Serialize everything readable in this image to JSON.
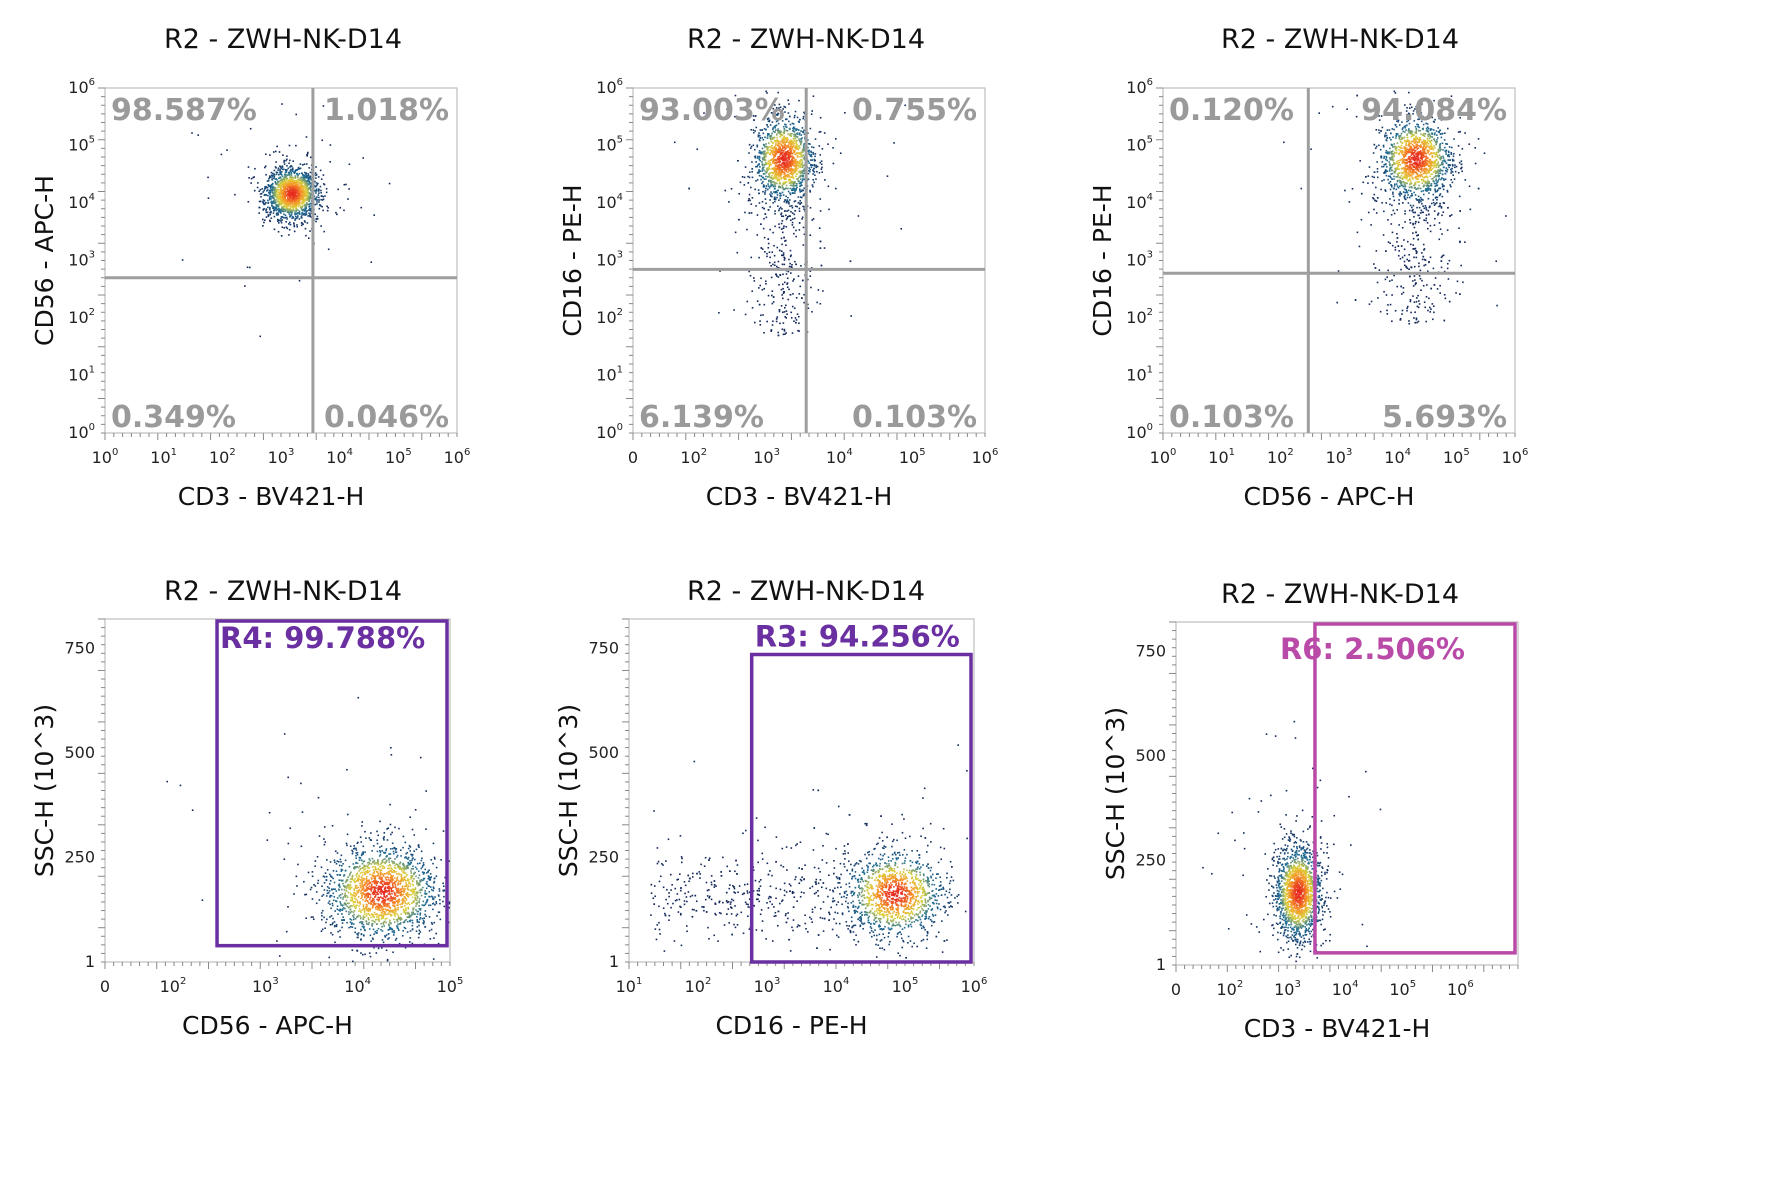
{
  "chart_data": [
    {
      "type": "scatter",
      "title": "R2 - ZWH-NK-D14",
      "xlabel": "CD3 - BV421-H",
      "ylabel": "CD56 - APC-H",
      "x_scale": "log",
      "y_scale": "log",
      "xlim": [
        1,
        1000000
      ],
      "ylim": [
        1,
        1000000
      ],
      "x_ticks": [
        {
          "base": "10",
          "exp": "0",
          "value": 1
        },
        {
          "base": "10",
          "exp": "1",
          "value": 10
        },
        {
          "base": "10",
          "exp": "2",
          "value": 100
        },
        {
          "base": "10",
          "exp": "3",
          "value": 1000
        },
        {
          "base": "10",
          "exp": "4",
          "value": 10000
        },
        {
          "base": "10",
          "exp": "5",
          "value": 100000
        },
        {
          "base": "10",
          "exp": "6",
          "value": 1000000
        }
      ],
      "y_ticks": [
        {
          "base": "10",
          "exp": "0",
          "value": 1
        },
        {
          "base": "10",
          "exp": "1",
          "value": 10
        },
        {
          "base": "10",
          "exp": "2",
          "value": 100
        },
        {
          "base": "10",
          "exp": "3",
          "value": 1000
        },
        {
          "base": "10",
          "exp": "4",
          "value": 10000
        },
        {
          "base": "10",
          "exp": "5",
          "value": 100000
        },
        {
          "base": "10",
          "exp": "6",
          "value": 1000000
        }
      ],
      "quadrant_gate": {
        "x": 3500,
        "y": 500
      },
      "quadrants": {
        "upper_left": "98.587%",
        "upper_right": "1.018%",
        "lower_left": "0.349%",
        "lower_right": "0.046%"
      },
      "population": {
        "cx": 1500,
        "cy": 15000,
        "sx": 0.22,
        "sy": 0.22,
        "n": 1700
      }
    },
    {
      "type": "scatter",
      "title": "R2 - ZWH-NK-D14",
      "xlabel": "CD3 - BV421-H",
      "ylabel": "CD16 - PE-H",
      "x_scale": "biexp",
      "y_scale": "log",
      "xlim": [
        0,
        1000000
      ],
      "ylim": [
        1,
        1000000
      ],
      "x_ticks": [
        {
          "base": "0",
          "exp": "",
          "value": 0
        },
        {
          "base": "10",
          "exp": "2",
          "value": 100
        },
        {
          "base": "10",
          "exp": "3",
          "value": 1000
        },
        {
          "base": "10",
          "exp": "4",
          "value": 10000
        },
        {
          "base": "10",
          "exp": "5",
          "value": 100000
        },
        {
          "base": "10",
          "exp": "6",
          "value": 1000000
        }
      ],
      "y_ticks": [
        {
          "base": "10",
          "exp": "0",
          "value": 1
        },
        {
          "base": "10",
          "exp": "1",
          "value": 10
        },
        {
          "base": "10",
          "exp": "2",
          "value": 100
        },
        {
          "base": "10",
          "exp": "3",
          "value": 1000
        },
        {
          "base": "10",
          "exp": "4",
          "value": 10000
        },
        {
          "base": "10",
          "exp": "5",
          "value": 100000
        },
        {
          "base": "10",
          "exp": "6",
          "value": 1000000
        }
      ],
      "quadrant_gate": {
        "x": 3500,
        "y": 700
      },
      "quadrants": {
        "upper_left": "93.003%",
        "upper_right": "0.755%",
        "lower_left": "6.139%",
        "lower_right": "0.103%"
      },
      "population": {
        "cx": 1700,
        "cy": 60000,
        "sx": 0.2,
        "sy": 0.35,
        "n": 1900,
        "tail_to_y": 50
      }
    },
    {
      "type": "scatter",
      "title": "R2 - ZWH-NK-D14",
      "xlabel": "CD56 - APC-H",
      "ylabel": "CD16 - PE-H",
      "x_scale": "log",
      "y_scale": "log",
      "xlim": [
        1,
        1000000
      ],
      "ylim": [
        1,
        1000000
      ],
      "x_ticks": [
        {
          "base": "10",
          "exp": "0",
          "value": 1
        },
        {
          "base": "10",
          "exp": "1",
          "value": 10
        },
        {
          "base": "10",
          "exp": "2",
          "value": 100
        },
        {
          "base": "10",
          "exp": "3",
          "value": 1000
        },
        {
          "base": "10",
          "exp": "4",
          "value": 10000
        },
        {
          "base": "10",
          "exp": "5",
          "value": 100000
        },
        {
          "base": "10",
          "exp": "6",
          "value": 1000000
        }
      ],
      "y_ticks": [
        {
          "base": "10",
          "exp": "0",
          "value": 1
        },
        {
          "base": "10",
          "exp": "1",
          "value": 10
        },
        {
          "base": "10",
          "exp": "2",
          "value": 100
        },
        {
          "base": "10",
          "exp": "3",
          "value": 1000
        },
        {
          "base": "10",
          "exp": "4",
          "value": 10000
        },
        {
          "base": "10",
          "exp": "5",
          "value": 100000
        },
        {
          "base": "10",
          "exp": "6",
          "value": 1000000
        }
      ],
      "quadrant_gate": {
        "x": 300,
        "y": 600
      },
      "quadrants": {
        "upper_left": "0.120%",
        "upper_right": "94.084%",
        "lower_left": "0.103%",
        "lower_right": "5.693%"
      },
      "population": {
        "cx": 20000,
        "cy": 60000,
        "sx": 0.3,
        "sy": 0.35,
        "n": 1900,
        "tail_to_y": 80
      }
    },
    {
      "type": "scatter",
      "title": "R2 - ZWH-NK-D14",
      "xlabel": "CD56 - APC-H",
      "ylabel": "SSC-H (10^3)",
      "x_scale": "biexp",
      "y_scale": "linear",
      "xlim": [
        0,
        100000
      ],
      "ylim": [
        1,
        820
      ],
      "x_ticks": [
        {
          "base": "0",
          "exp": "",
          "value": 0
        },
        {
          "base": "10",
          "exp": "2",
          "value": 100
        },
        {
          "base": "10",
          "exp": "3",
          "value": 1000
        },
        {
          "base": "10",
          "exp": "4",
          "value": 10000
        },
        {
          "base": "10",
          "exp": "5",
          "value": 100000
        }
      ],
      "y_ticks": [
        {
          "base": "1",
          "exp": "",
          "value": 1
        },
        {
          "base": "250",
          "exp": "",
          "value": 250
        },
        {
          "base": "500",
          "exp": "",
          "value": 500
        },
        {
          "base": "750",
          "exp": "",
          "value": 750
        }
      ],
      "gate": {
        "name": "R4",
        "label": "R4: 99.788%",
        "color": "#6a2fa0",
        "x": [
          300,
          100000
        ],
        "y": [
          40,
          820
        ]
      },
      "population": {
        "cx": 18000,
        "cy": 170,
        "sx": 0.3,
        "sy": 55,
        "n": 1900
      }
    },
    {
      "type": "scatter",
      "title": "R2 - ZWH-NK-D14",
      "xlabel": "CD16 - PE-H",
      "ylabel": "SSC-H (10^3)",
      "x_scale": "log",
      "y_scale": "linear",
      "xlim": [
        10,
        1000000
      ],
      "ylim": [
        1,
        820
      ],
      "x_ticks": [
        {
          "base": "10",
          "exp": "1",
          "value": 10
        },
        {
          "base": "10",
          "exp": "2",
          "value": 100
        },
        {
          "base": "10",
          "exp": "3",
          "value": 1000
        },
        {
          "base": "10",
          "exp": "4",
          "value": 10000
        },
        {
          "base": "10",
          "exp": "5",
          "value": 100000
        },
        {
          "base": "10",
          "exp": "6",
          "value": 1000000
        }
      ],
      "y_ticks": [
        {
          "base": "1",
          "exp": "",
          "value": 1
        },
        {
          "base": "250",
          "exp": "",
          "value": 250
        },
        {
          "base": "500",
          "exp": "",
          "value": 500
        },
        {
          "base": "750",
          "exp": "",
          "value": 750
        }
      ],
      "gate": {
        "name": "R3",
        "label": "R3: 94.256%",
        "color": "#6a2fa0",
        "x": [
          600,
          1000000
        ],
        "y": [
          1,
          740
        ]
      },
      "population": {
        "cx": 70000,
        "cy": 165,
        "sx": 0.35,
        "sy": 50,
        "n": 1900,
        "tail_to_x": 20
      }
    },
    {
      "type": "scatter",
      "title": "R2 - ZWH-NK-D14",
      "xlabel": "CD3 - BV421-H",
      "ylabel": "SSC-H (10^3)",
      "x_scale": "biexp",
      "y_scale": "linear",
      "xlim": [
        0,
        10000000
      ],
      "ylim": [
        1,
        820
      ],
      "x_ticks": [
        {
          "base": "0",
          "exp": "",
          "value": 0
        },
        {
          "base": "10",
          "exp": "2",
          "value": 100
        },
        {
          "base": "10",
          "exp": "3",
          "value": 1000
        },
        {
          "base": "10",
          "exp": "4",
          "value": 10000
        },
        {
          "base": "10",
          "exp": "5",
          "value": 100000
        },
        {
          "base": "10",
          "exp": "6",
          "value": 1000000
        }
      ],
      "y_ticks": [
        {
          "base": "1",
          "exp": "",
          "value": 1
        },
        {
          "base": "250",
          "exp": "",
          "value": 250
        },
        {
          "base": "500",
          "exp": "",
          "value": 500
        },
        {
          "base": "750",
          "exp": "",
          "value": 750
        }
      ],
      "gate": {
        "name": "R6",
        "label": "R6: 2.506%",
        "color": "#b94aa8",
        "x": [
          3000,
          10000000
        ],
        "y": [
          30,
          820
        ]
      },
      "population": {
        "cx": 1500,
        "cy": 175,
        "sx": 0.2,
        "sy": 55,
        "n": 1700
      }
    }
  ]
}
